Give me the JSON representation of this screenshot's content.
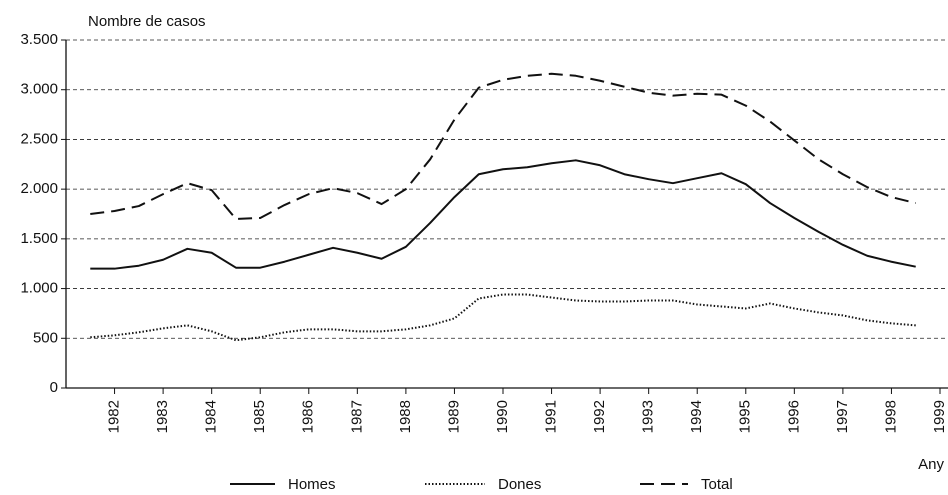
{
  "chart_data": {
    "type": "line",
    "y_label": "Nombre de casos",
    "x_label": "Any",
    "x": [
      1981.5,
      1982,
      1982.5,
      1983,
      1983.5,
      1984,
      1984.5,
      1985,
      1985.5,
      1986,
      1986.5,
      1987,
      1987.5,
      1988,
      1988.5,
      1989,
      1989.5,
      1990,
      1990.5,
      1991,
      1991.5,
      1992,
      1992.5,
      1993,
      1993.5,
      1994,
      1994.5,
      1995,
      1995.5,
      1996,
      1996.5,
      1997,
      1997.5,
      1998,
      1998.5
    ],
    "series": [
      {
        "name": "Homes",
        "color": "#111111",
        "dash": "solid",
        "values": [
          1200,
          1200,
          1230,
          1290,
          1400,
          1360,
          1210,
          1210,
          1270,
          1340,
          1410,
          1360,
          1300,
          1420,
          1660,
          1920,
          2150,
          2200,
          2220,
          2260,
          2290,
          2240,
          2150,
          2100,
          2060,
          2110,
          2160,
          2050,
          1860,
          1710,
          1570,
          1440,
          1330,
          1270,
          1220
        ]
      },
      {
        "name": "Dones",
        "color": "#111111",
        "dash": "dotted",
        "values": [
          510,
          530,
          560,
          600,
          630,
          570,
          480,
          510,
          560,
          590,
          590,
          570,
          570,
          590,
          630,
          700,
          900,
          940,
          940,
          910,
          880,
          870,
          870,
          880,
          880,
          840,
          820,
          800,
          850,
          800,
          760,
          730,
          680,
          650,
          630
        ]
      },
      {
        "name": "Total",
        "color": "#111111",
        "dash": "dashed",
        "values": [
          1750,
          1780,
          1830,
          1950,
          2060,
          1990,
          1700,
          1710,
          1840,
          1950,
          2010,
          1960,
          1850,
          2000,
          2300,
          2700,
          3020,
          3100,
          3140,
          3160,
          3140,
          3090,
          3030,
          2970,
          2940,
          2960,
          2950,
          2840,
          2680,
          2490,
          2300,
          2150,
          2020,
          1920,
          1860
        ]
      }
    ],
    "xlim": [
      1981,
      1999
    ],
    "xticks": [
      1982,
      1983,
      1984,
      1985,
      1986,
      1987,
      1988,
      1989,
      1990,
      1991,
      1992,
      1993,
      1994,
      1995,
      1996,
      1997,
      1998,
      1999
    ],
    "ylim": [
      0,
      3500
    ],
    "yticks": [
      0,
      500,
      {
        "value": 1000,
        "label": "1.000"
      },
      {
        "value": 1500,
        "label": "1.500"
      },
      {
        "value": 2000,
        "label": "2.000"
      },
      {
        "value": 2500,
        "label": "2.500"
      },
      {
        "value": 3000,
        "label": "3.000"
      },
      {
        "value": 3500,
        "label": "3.500"
      }
    ],
    "grid": true,
    "legend": "bottom"
  }
}
